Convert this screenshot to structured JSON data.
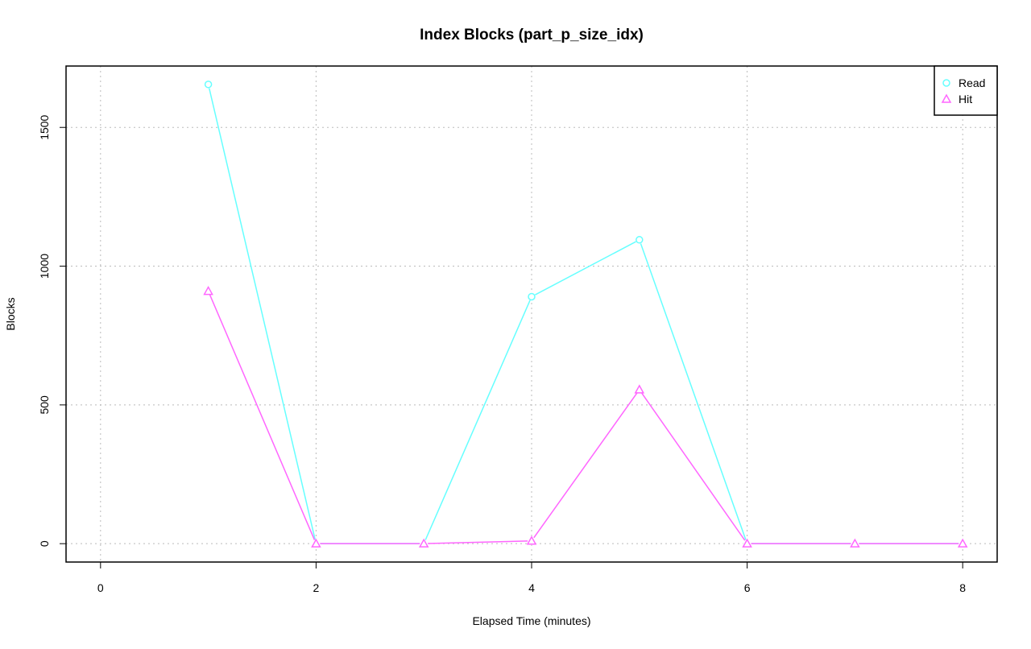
{
  "chart_data": {
    "type": "line",
    "title": "Index Blocks (part_p_size_idx)",
    "x_label": "Elapsed Time (minutes)",
    "y_label": "Blocks",
    "x": [
      1,
      2,
      3,
      4,
      5,
      6,
      7,
      8
    ],
    "series": [
      {
        "name": "Read",
        "color": "#66ffff",
        "marker": "circle",
        "values": [
          1655,
          0,
          0,
          890,
          1095,
          0,
          0,
          0
        ]
      },
      {
        "name": "Hit",
        "color": "#ff66ff",
        "marker": "triangle",
        "values": [
          910,
          0,
          0,
          10,
          555,
          0,
          0,
          0
        ]
      }
    ],
    "xlim": [
      -0.32,
      8.32
    ],
    "xticks": [
      0,
      2,
      4,
      6,
      8
    ],
    "ylim": [
      -66.2,
      1721.2
    ],
    "yticks": [
      0,
      500,
      1000,
      1500
    ],
    "grid": true,
    "legend": "top-right"
  }
}
